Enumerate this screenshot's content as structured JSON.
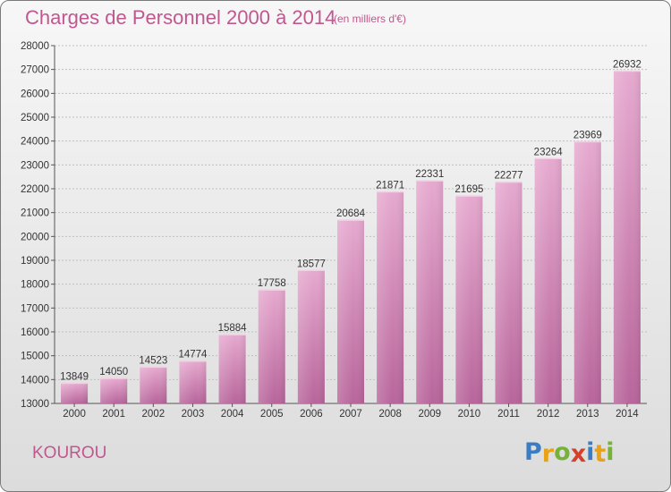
{
  "header": {
    "title": "Charges de Personnel 2000 à 2014",
    "subtitle": "(en milliers d'€)"
  },
  "footer": {
    "place": "KOUROU",
    "logo": "Proxiti",
    "logo_letters": [
      "P",
      "r",
      "o",
      "x",
      "i",
      "t",
      "i"
    ],
    "logo_colors": [
      "#3b7dc4",
      "#e8a21a",
      "#74b23a",
      "#d6402b",
      "#3b7dc4",
      "#e8a21a",
      "#74b23a"
    ]
  },
  "colors": {
    "accent": "#c0578f",
    "bar_top": "#e6a9cf",
    "bar_bottom": "#b8659b"
  },
  "chart_data": {
    "type": "bar",
    "title": "Charges de Personnel 2000 à 2014",
    "subtitle": "(en milliers d'€)",
    "xlabel": "",
    "ylabel": "",
    "categories": [
      "2000",
      "2001",
      "2002",
      "2003",
      "2004",
      "2005",
      "2006",
      "2007",
      "2008",
      "2009",
      "2010",
      "2011",
      "2012",
      "2013",
      "2014"
    ],
    "values": [
      13849,
      14050,
      14523,
      14774,
      15884,
      17758,
      18577,
      20684,
      21871,
      22331,
      21695,
      22277,
      23264,
      23969,
      26932
    ],
    "ylim": [
      13000,
      28000
    ],
    "yticks": [
      13000,
      14000,
      15000,
      16000,
      17000,
      18000,
      19000,
      20000,
      21000,
      22000,
      23000,
      24000,
      25000,
      26000,
      27000,
      28000
    ],
    "grid": true,
    "legend": "none"
  }
}
